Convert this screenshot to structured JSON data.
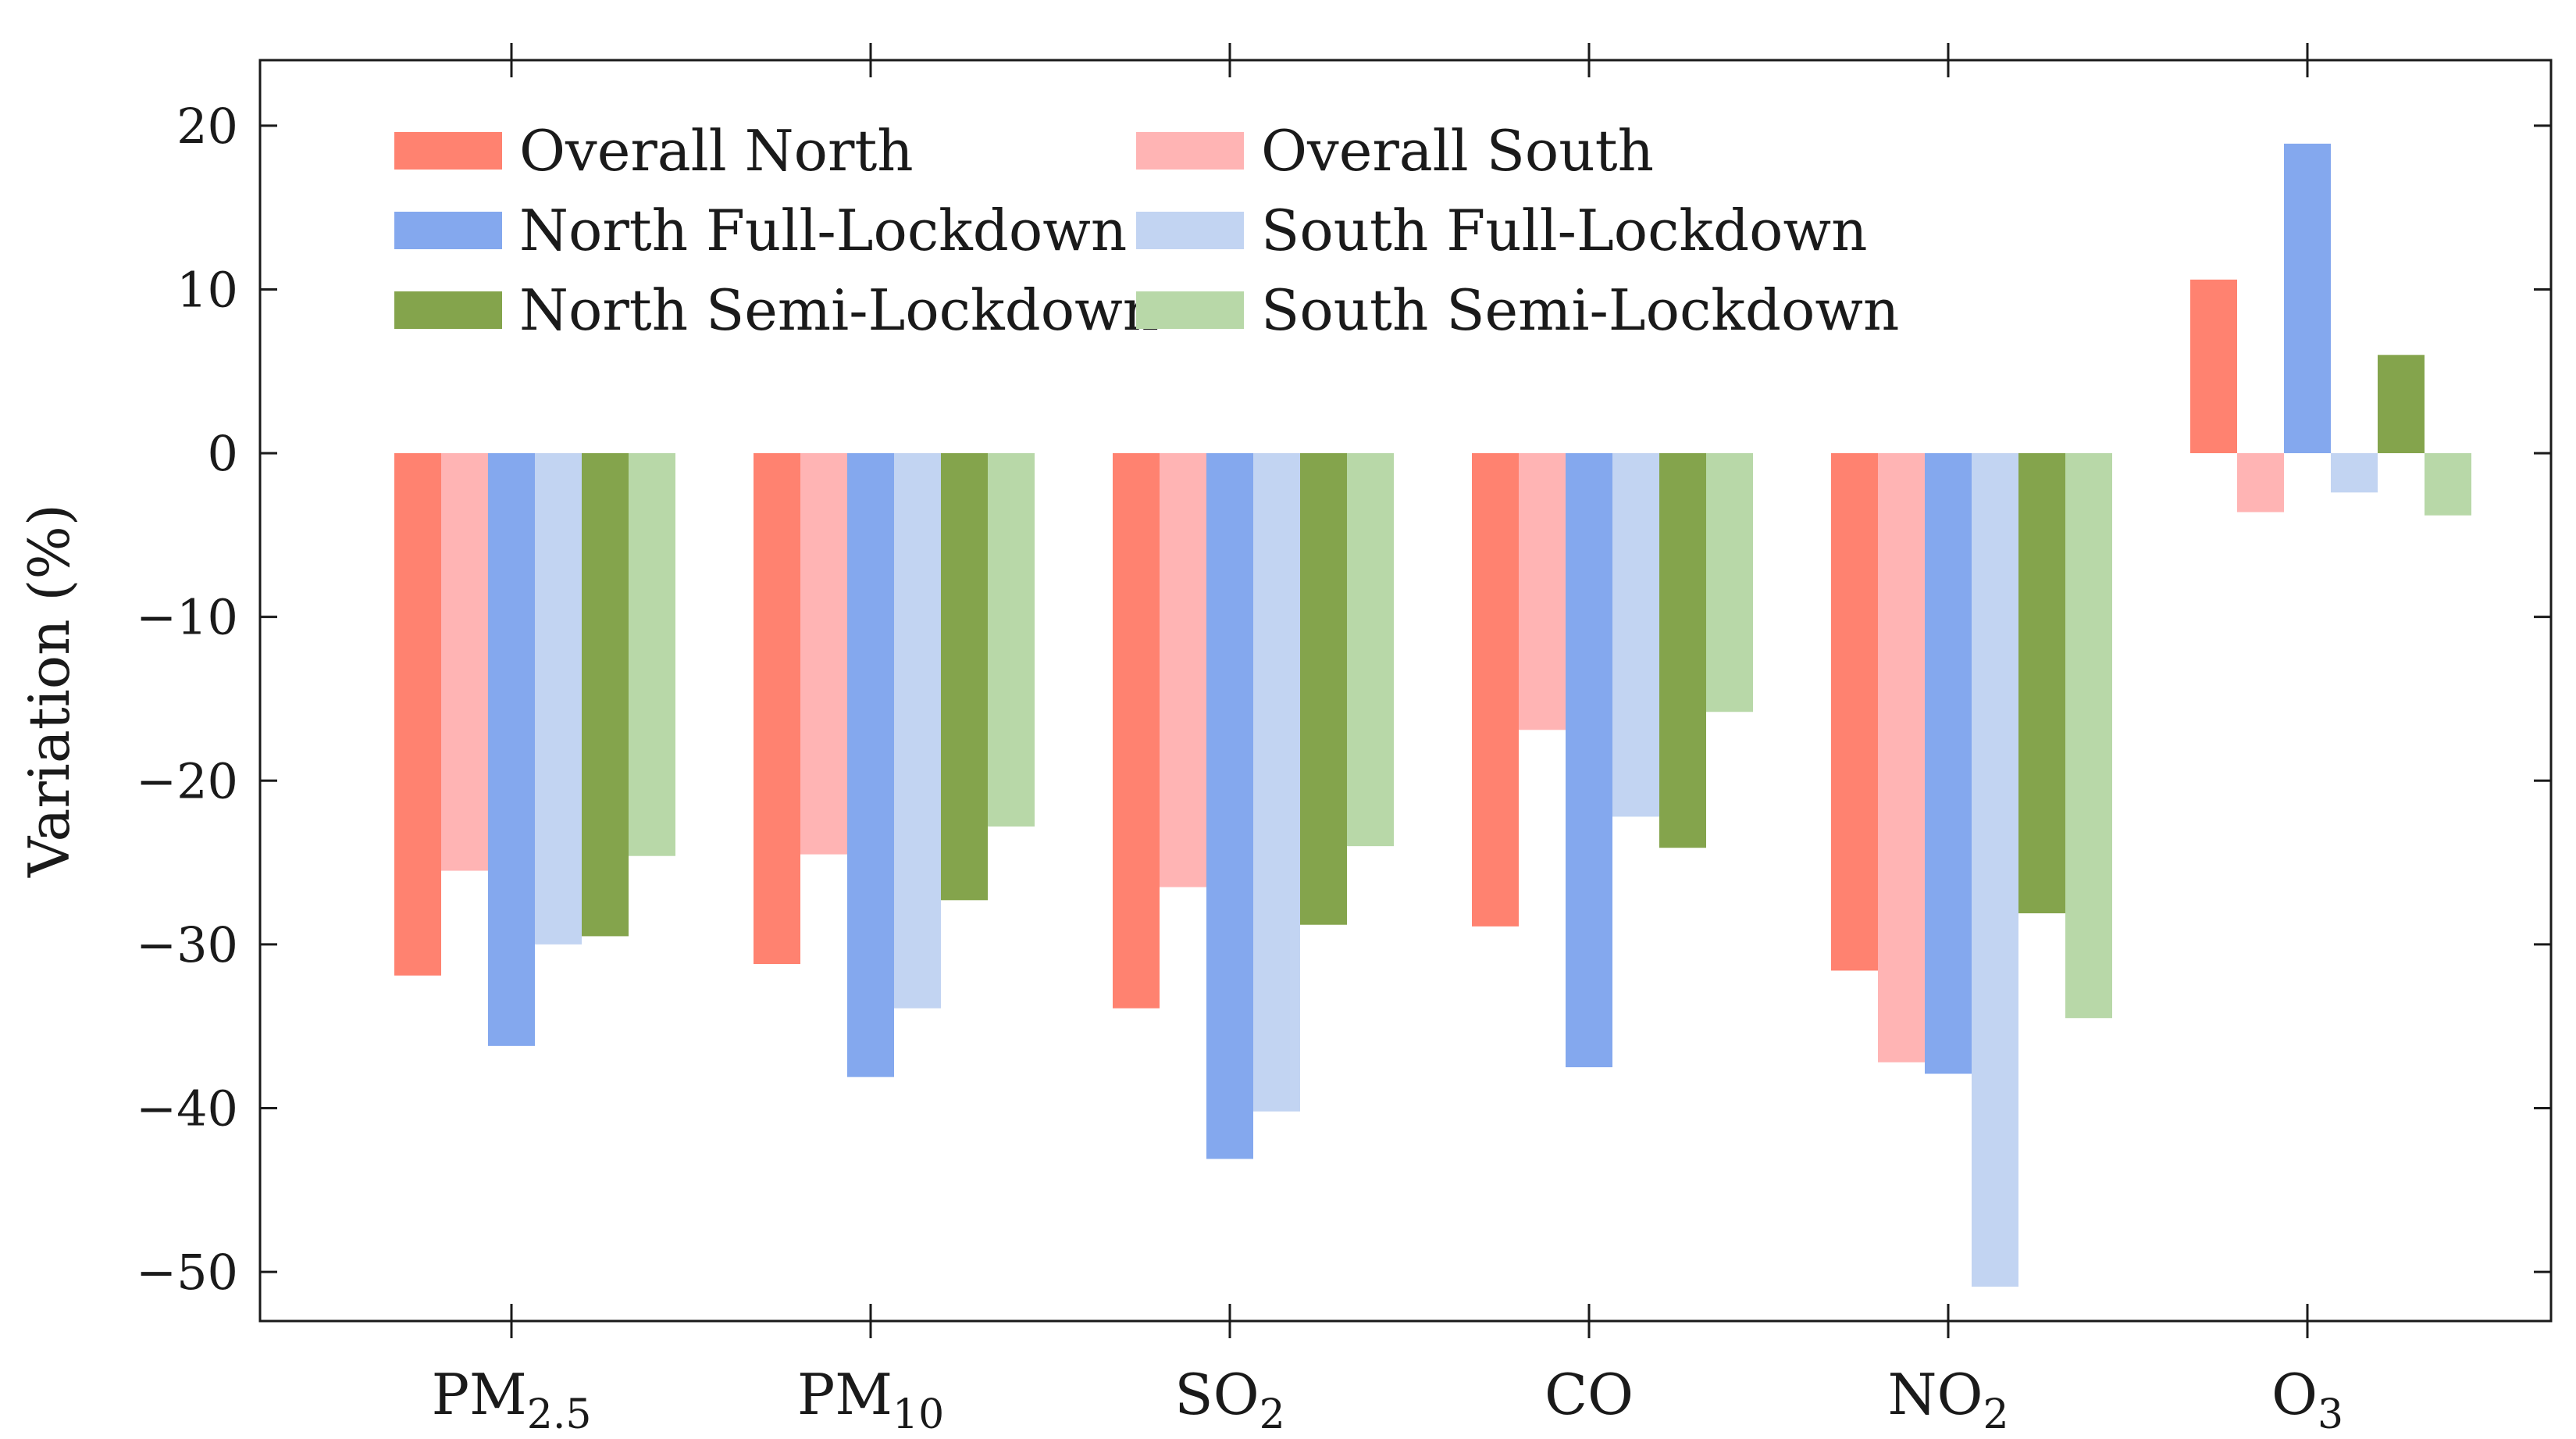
{
  "chart_data": {
    "type": "bar",
    "title": "",
    "xlabel": "",
    "ylabel": "Variation (%)",
    "ylim": [
      -53,
      24
    ],
    "yticks": [
      20,
      10,
      0,
      -10,
      -20,
      -30,
      -40,
      -50
    ],
    "ytick_labels": [
      "20",
      "10",
      "0",
      "−10",
      "−20",
      "−30",
      "−40",
      "−50"
    ],
    "categories": [
      {
        "base": "PM",
        "sub": "2.5"
      },
      {
        "base": "PM",
        "sub": "10"
      },
      {
        "base": "SO",
        "sub": "2"
      },
      {
        "base": "CO",
        "sub": ""
      },
      {
        "base": "NO",
        "sub": "2"
      },
      {
        "base": "O",
        "sub": "3"
      }
    ],
    "series": [
      {
        "name": "Overall North",
        "color": "#ff8270",
        "values": [
          -31.9,
          -31.2,
          -33.9,
          -28.9,
          -31.6,
          10.6
        ]
      },
      {
        "name": "Overall South",
        "color": "#ffb4b4",
        "values": [
          -25.5,
          -24.5,
          -26.5,
          -16.9,
          -37.2,
          -3.6
        ]
      },
      {
        "name": "North Full-Lockdown",
        "color": "#84a8ee",
        "values": [
          -36.2,
          -38.1,
          -43.1,
          -37.5,
          -37.9,
          18.9
        ]
      },
      {
        "name": "South Full-Lockdown",
        "color": "#c2d4f2",
        "values": [
          -30.0,
          -33.9,
          -40.2,
          -22.2,
          -50.9,
          -2.4
        ]
      },
      {
        "name": "North Semi-Lockdown",
        "color": "#84a44c",
        "values": [
          -29.5,
          -27.3,
          -28.8,
          -24.1,
          -28.1,
          6.0
        ]
      },
      {
        "name": "South Semi-Lockdown",
        "color": "#b8d8a8",
        "values": [
          -24.6,
          -22.8,
          -24.0,
          -15.8,
          -34.5,
          -3.8
        ]
      }
    ],
    "legend": {
      "position": "top-left",
      "columns": 2,
      "order": [
        "Overall North",
        "Overall South",
        "North Full-Lockdown",
        "South Full-Lockdown",
        "North Semi-Lockdown",
        "South Semi-Lockdown"
      ]
    },
    "grid": false
  }
}
